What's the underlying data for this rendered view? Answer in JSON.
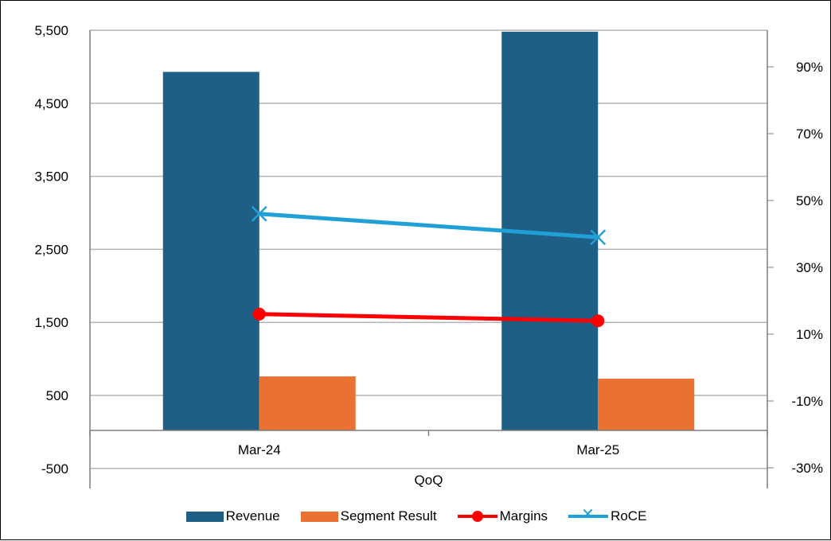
{
  "chart_data": {
    "type": "bar",
    "categories": [
      "Mar-24",
      "Mar-25"
    ],
    "xlabel": "QoQ",
    "y_left": {
      "ticks": [
        "5,500",
        "4,500",
        "3,500",
        "2,500",
        "1,500",
        "500",
        "-500"
      ],
      "ylim": [
        -1000,
        5500
      ]
    },
    "y_right": {
      "ticks": [
        "90%",
        "70%",
        "50%",
        "30%",
        "10%",
        "-10%",
        "-30%"
      ],
      "ylim": [
        -40,
        100
      ]
    },
    "series": [
      {
        "name": "Revenue",
        "kind": "bar",
        "axis": "left",
        "color": "#1F5F86",
        "values": [
          4930,
          5480
        ]
      },
      {
        "name": "Segment Result",
        "kind": "bar",
        "axis": "left",
        "color": "#E97132",
        "values": [
          760,
          730
        ]
      },
      {
        "name": "Margins",
        "kind": "line",
        "axis": "right",
        "color": "#FF0000",
        "marker": "circle",
        "values": [
          16,
          14
        ]
      },
      {
        "name": "RoCE",
        "kind": "line",
        "axis": "right",
        "color": "#21A0D8",
        "marker": "x",
        "values": [
          46,
          39
        ]
      }
    ],
    "grid": true,
    "legend": "bottom"
  }
}
